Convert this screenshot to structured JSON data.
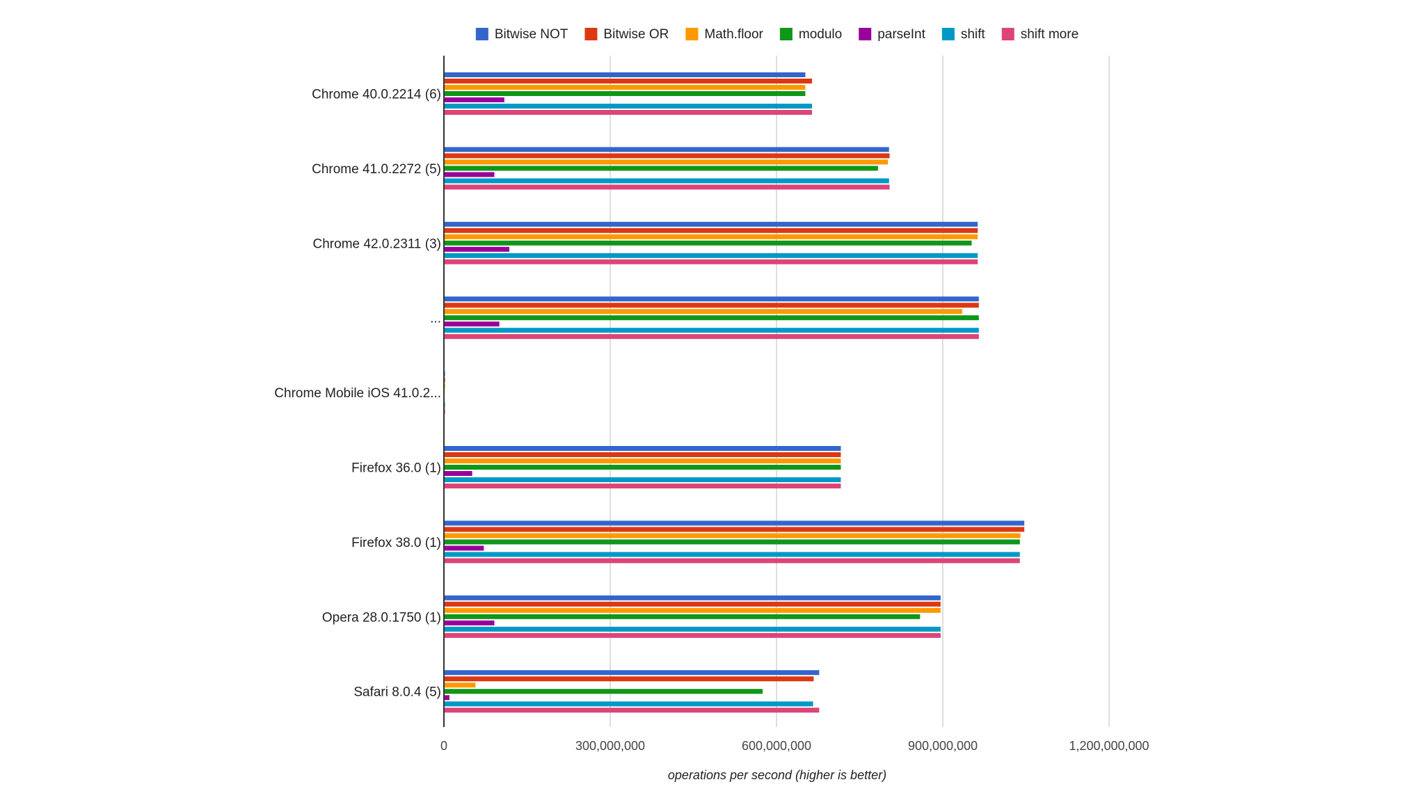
{
  "chart_data": {
    "type": "bar",
    "orientation": "horizontal",
    "xlabel": "operations per second (higher is better)",
    "xlim": [
      0,
      1200000000
    ],
    "x_ticks": [
      0,
      300000000,
      600000000,
      900000000,
      1200000000
    ],
    "x_tick_labels": [
      "0",
      "300,000,000",
      "600,000,000",
      "900,000,000",
      "1,200,000,000"
    ],
    "grid": true,
    "legend_position": "top",
    "categories": [
      "Chrome 40.0.2214 (6)",
      "Chrome 41.0.2272 (5)",
      "Chrome 42.0.2311 (3)",
      "...",
      "Chrome Mobile iOS 41.0.2...",
      "Firefox 36.0 (1)",
      "Firefox 38.0 (1)",
      "Opera 28.0.1750 (1)",
      "Safari 8.0.4 (5)"
    ],
    "series": [
      {
        "name": "Bitwise NOT",
        "color": "#3366cc",
        "values": [
          652000000,
          803000000,
          963000000,
          965000000,
          2000000,
          716000000,
          1047000000,
          896000000,
          677000000
        ]
      },
      {
        "name": "Bitwise OR",
        "color": "#dc3912",
        "values": [
          664000000,
          804000000,
          963000000,
          965000000,
          2000000,
          716000000,
          1047000000,
          896000000,
          667000000
        ]
      },
      {
        "name": "Math.floor",
        "color": "#ff9900",
        "values": [
          652000000,
          801000000,
          963000000,
          935000000,
          2000000,
          716000000,
          1040000000,
          896000000,
          57000000
        ]
      },
      {
        "name": "modulo",
        "color": "#109618",
        "values": [
          652000000,
          783000000,
          952000000,
          965000000,
          1000000,
          716000000,
          1039000000,
          859000000,
          575000000
        ]
      },
      {
        "name": "parseInt",
        "color": "#990099",
        "values": [
          109000000,
          91000000,
          118000000,
          100000000,
          500000,
          51000000,
          72000000,
          91000000,
          10000000
        ]
      },
      {
        "name": "shift",
        "color": "#0099c6",
        "values": [
          664000000,
          803000000,
          963000000,
          965000000,
          2000000,
          716000000,
          1039000000,
          896000000,
          666000000
        ]
      },
      {
        "name": "shift more",
        "color": "#dd4477",
        "values": [
          664000000,
          804000000,
          963000000,
          965000000,
          2000000,
          716000000,
          1039000000,
          896000000,
          677000000
        ]
      }
    ]
  }
}
